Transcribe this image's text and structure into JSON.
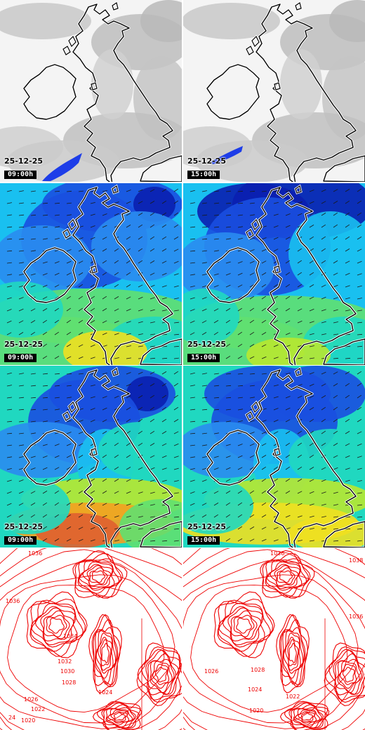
{
  "rows": [
    {
      "layer": "cloud-cover",
      "panels": [
        {
          "date": "25-12-25",
          "time": "09:00h"
        },
        {
          "date": "25-12-25",
          "time": "15:00h"
        }
      ]
    },
    {
      "layer": "wind-speed-low",
      "panels": [
        {
          "date": "25-12-25",
          "time": "09:00h"
        },
        {
          "date": "25-12-25",
          "time": "15:00h"
        }
      ]
    },
    {
      "layer": "wind-speed-high",
      "panels": [
        {
          "date": "25-12-25",
          "time": "09:00h"
        },
        {
          "date": "25-12-25",
          "time": "15:00h"
        }
      ]
    },
    {
      "layer": "pressure-isobars",
      "panels": [
        {
          "isobar_labels": [
            "1036",
            "1036",
            "1034",
            "1032",
            "1030",
            "1028",
            "1026",
            "1024",
            "1022",
            "1020",
            "24"
          ]
        },
        {
          "isobar_labels": [
            "1036",
            "1036",
            "1028",
            "1026",
            "1024",
            "1022",
            "1020",
            "1038"
          ]
        }
      ]
    }
  ],
  "colors": {
    "wind_scale": [
      "#0a1fb0",
      "#1a4fe0",
      "#2a8cf0",
      "#19c0f0",
      "#20d8c0",
      "#60e070",
      "#b8e830",
      "#f0e020",
      "#f4a020",
      "#e06030"
    ],
    "isobar": "#ee0000",
    "coast": "#000000",
    "sea_blue": "#1a3fe0"
  }
}
